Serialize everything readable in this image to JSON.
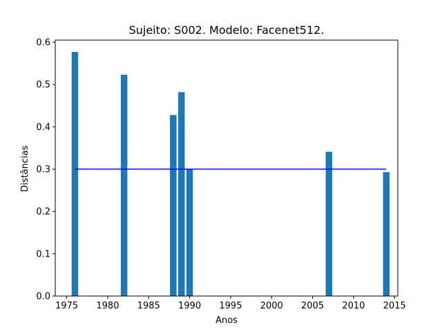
{
  "chart_data": {
    "type": "bar",
    "title": "Sujeito: S002. Modelo: Facenet512.",
    "xlabel": "Anos",
    "ylabel": "Distâncias",
    "xlim": [
      1973.6,
      2015.4
    ],
    "ylim": [
      0,
      0.605
    ],
    "xticks": [
      1975,
      1980,
      1985,
      1990,
      1995,
      2000,
      2005,
      2010,
      2015
    ],
    "yticks": [
      0.0,
      0.1,
      0.2,
      0.3,
      0.4,
      0.5,
      0.6
    ],
    "ytick_labels": [
      "0.0",
      "0.1",
      "0.2",
      "0.3",
      "0.4",
      "0.5",
      "0.6"
    ],
    "bar_width_years": 0.8,
    "bar_color": "#1f77b4",
    "bars": [
      {
        "x": 1976,
        "value": 0.577
      },
      {
        "x": 1982,
        "value": 0.523
      },
      {
        "x": 1988,
        "value": 0.428
      },
      {
        "x": 1989,
        "value": 0.482
      },
      {
        "x": 1990,
        "value": 0.3
      },
      {
        "x": 2007,
        "value": 0.341
      },
      {
        "x": 2014,
        "value": 0.293
      }
    ],
    "threshold_line": {
      "x": [
        1976,
        2014
      ],
      "value": 0.3,
      "color": "#0000ff"
    },
    "grid": false,
    "legend": "none"
  }
}
